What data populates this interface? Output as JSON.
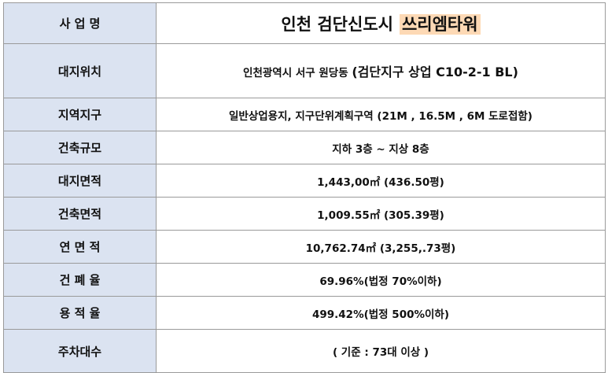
{
  "title_row": {
    "label": "사 업 명",
    "value_main": "인천 검단신도시",
    "value_highlight": "쓰리엠타워"
  },
  "rows": [
    {
      "label": "대지위치",
      "value": "인천광역시 서구 원당동",
      "value_extra": "(검단지구 상업 C10-2-1 BL)"
    },
    {
      "label": "지역지구",
      "value": "일반상업용지, 지구단위계획구역 (21M , 16.5M , 6M 도로접함)"
    },
    {
      "label": "건축규모",
      "value": "지하 3층 ~ 지상 8층"
    },
    {
      "label": "대지면적",
      "value": "1,443,00㎡ (436.50평)"
    },
    {
      "label": "건축면적",
      "value": "1,009.55㎡ (305.39평)"
    },
    {
      "label": "연 면 적",
      "value": "10,762.74㎡ (3,255,.73평)"
    },
    {
      "label": "건 폐 율",
      "value": "69.96%(법정 70%이하)"
    },
    {
      "label": "용 적 율",
      "value": "499.42%(법정 500%이하)"
    },
    {
      "label": "주차대수",
      "value": "( 기준 : 73대 이상 )"
    }
  ],
  "colors": {
    "label_bg": "#dbe3f1",
    "highlight_bg": "#fdd9b5",
    "border": "#9a9a9a"
  }
}
